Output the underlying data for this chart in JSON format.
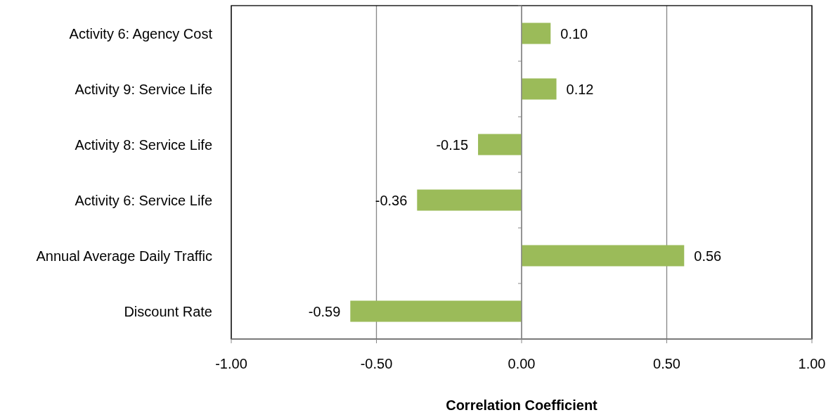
{
  "chart_data": {
    "type": "bar",
    "orientation": "horizontal",
    "xlabel": "Correlation Coefficient",
    "categories": [
      "Activity 6: Agency Cost",
      "Activity 9: Service Life",
      "Activity 8: Service Life",
      "Activity 6: Service Life",
      "Annual Average Daily Traffic",
      "Discount Rate"
    ],
    "values": [
      0.1,
      0.12,
      -0.15,
      -0.36,
      0.56,
      -0.59
    ],
    "value_labels": [
      "0.10",
      "0.12",
      "-0.15",
      "-0.36",
      "0.56",
      "-0.59"
    ],
    "color": "#9bbb59",
    "xlim": [
      -1,
      1
    ],
    "xticks": [
      {
        "value": -1,
        "label": "-1.00"
      },
      {
        "value": -0.5,
        "label": "-0.50"
      },
      {
        "value": 0,
        "label": "0.00"
      },
      {
        "value": 0.5,
        "label": "0.50"
      },
      {
        "value": 1,
        "label": "1.00"
      }
    ],
    "grid": "x",
    "legend": false
  }
}
